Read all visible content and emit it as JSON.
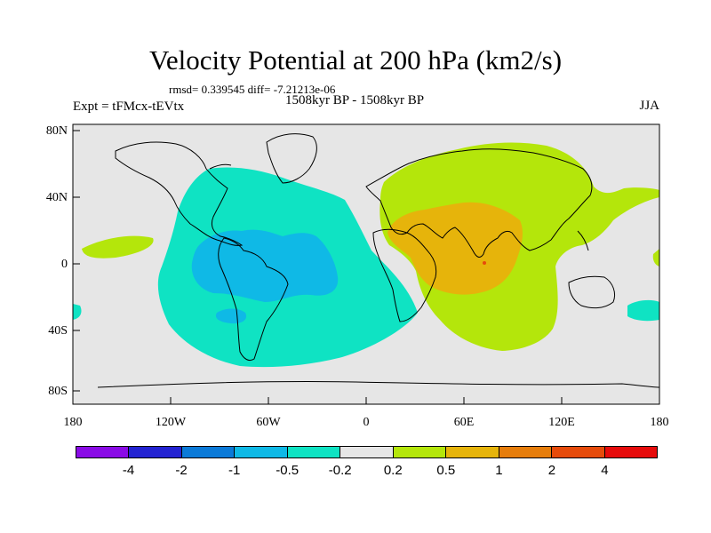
{
  "header": {
    "title": "Velocity Potential at 200 hPa (km2/s)",
    "stats": "rmsd= 0.339545 diff= -7.21213e-06",
    "experiment": "Expt = tFMcx-tEVtx",
    "period": "1508kyr BP - 1508kyr BP",
    "season": "JJA"
  },
  "map": {
    "lat_labels": [
      "80N",
      "40N",
      "0",
      "40S",
      "80S"
    ],
    "lon_labels": [
      "180",
      "120W",
      "60W",
      "0",
      "60E",
      "120E",
      "180"
    ]
  },
  "colorbar": {
    "labels": [
      "-4",
      "-2",
      "-1",
      "-0.5",
      "-0.2",
      "0.2",
      "0.5",
      "1",
      "2",
      "4"
    ],
    "colors": [
      "#8a0be6",
      "#2323d2",
      "#0b7ad8",
      "#0fb9e6",
      "#0fe3c3",
      "#e6e6e6",
      "#b4e60b",
      "#e6b40b",
      "#e67d0b",
      "#e64b0b",
      "#e60b0b"
    ]
  }
}
